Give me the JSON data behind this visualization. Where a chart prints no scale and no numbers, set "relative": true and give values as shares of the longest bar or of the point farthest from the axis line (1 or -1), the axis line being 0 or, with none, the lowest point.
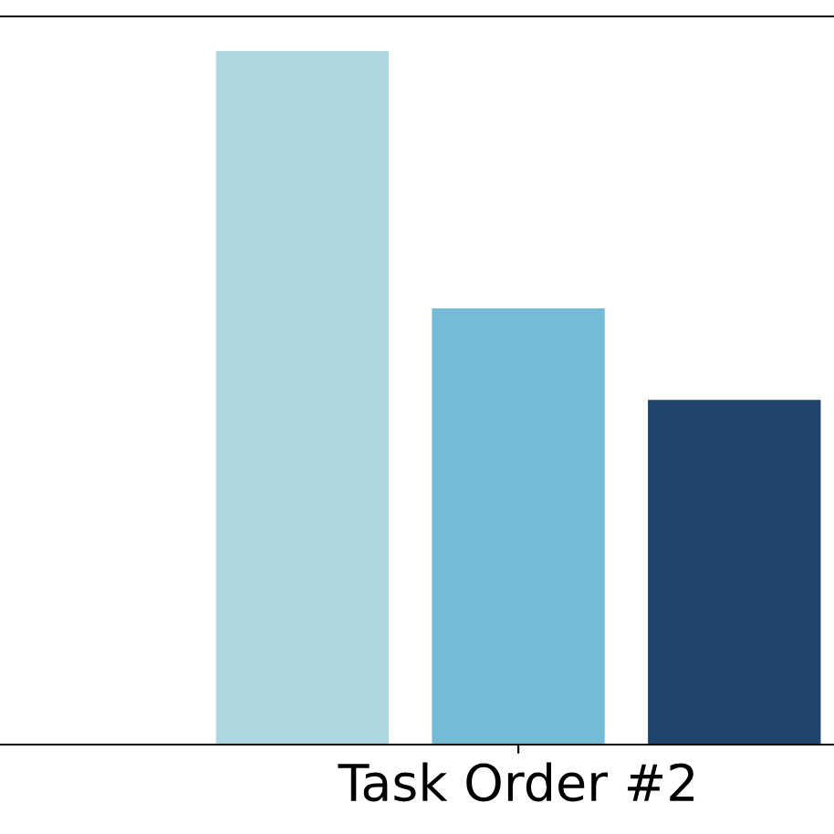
{
  "chart_data": {
    "type": "bar",
    "relative": true,
    "categories": [
      null,
      "Task Order #2",
      null
    ],
    "values": [
      1,
      0.629,
      0.497
    ],
    "colors": [
      "#add8e0",
      "#74bbd5",
      "#1f456d"
    ],
    "legend": false,
    "grid": false
  }
}
